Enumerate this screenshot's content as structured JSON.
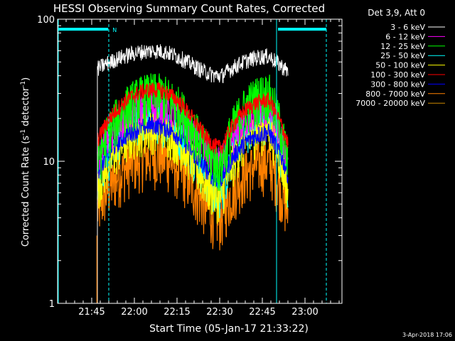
{
  "chart_data": {
    "type": "line",
    "title": "HESSI Observing Summary Count Rates, Corrected",
    "xlabel": "Start Time (05-Jan-17 21:33:22)",
    "ylabel_main": "Corrected Count Rate (s",
    "ylabel_sup1": "-1",
    "ylabel_mid": " detector",
    "ylabel_sup2": "-1",
    "ylabel_end": ")",
    "footer": "3-Apr-2018 17:06",
    "legend_header": "Det 3,9, Att 0",
    "legend_position": "top-right, outside plot",
    "xlim": [
      0,
      100
    ],
    "ylim": [
      1,
      100
    ],
    "yscale": "log",
    "grid": false,
    "x_ticks": [
      {
        "label": "21:45",
        "value": 12
      },
      {
        "label": "22:00",
        "value": 27
      },
      {
        "label": "22:15",
        "value": 42
      },
      {
        "label": "22:30",
        "value": 57
      },
      {
        "label": "22:45",
        "value": 72
      },
      {
        "label": "23:00",
        "value": 87
      }
    ],
    "y_ticks": [
      {
        "label": "100",
        "value": 100
      },
      {
        "label": "10",
        "value": 10
      },
      {
        "label": "1",
        "value": 1
      }
    ],
    "markers": {
      "n_label": "N",
      "dashed_x": [
        18,
        94.5
      ],
      "solid_x": [
        0,
        77
      ],
      "bars": [
        [
          0,
          17.8
        ],
        [
          77.5,
          94.5
        ]
      ],
      "bar_y": 85,
      "bar_color": "#00ffff"
    },
    "series": [
      {
        "name": "3 - 6 keV",
        "color": "#ffffff",
        "base": 45,
        "peak1": 60,
        "valley": 40,
        "peak2": 55,
        "noise": 0.06
      },
      {
        "name": "6 - 12 keV",
        "color": "#ff00ff",
        "base": 11,
        "peak1": 25,
        "valley": 10,
        "peak2": 23,
        "noise": 0.12
      },
      {
        "name": "12 - 25 keV",
        "color": "#00ff00",
        "base": 10,
        "peak1": 30,
        "valley": 9.5,
        "peak2": 30,
        "noise": 0.18
      },
      {
        "name": "25 - 50 keV",
        "color": "#00ffff",
        "base": 7,
        "peak1": 20,
        "valley": 6,
        "peak2": 20,
        "noise": 0.16
      },
      {
        "name": "50 - 100 keV",
        "color": "#ffff00",
        "base": 6.5,
        "peak1": 17,
        "valley": 5.5,
        "peak2": 17,
        "noise": 0.16
      },
      {
        "name": "100 - 300 keV",
        "color": "#ff0000",
        "base": 14,
        "peak1": 32,
        "valley": 12.5,
        "peak2": 27,
        "noise": 0.06
      },
      {
        "name": "300 - 800 keV",
        "color": "#0000ff",
        "base": 8.5,
        "peak1": 18,
        "valley": 7.5,
        "peak2": 16,
        "noise": 0.07
      },
      {
        "name": "800 - 7000 keV",
        "color": "#ff8000",
        "base": 4.5,
        "peak1": 11,
        "valley": 4,
        "peak2": 10,
        "noise": 0.2
      },
      {
        "name": "7000 - 20000 keV",
        "color": "#cc8800",
        "base": 0,
        "peak1": 0,
        "valley": 0,
        "peak2": 0,
        "noise": 0
      }
    ],
    "data_range_x": [
      14,
      81
    ]
  }
}
